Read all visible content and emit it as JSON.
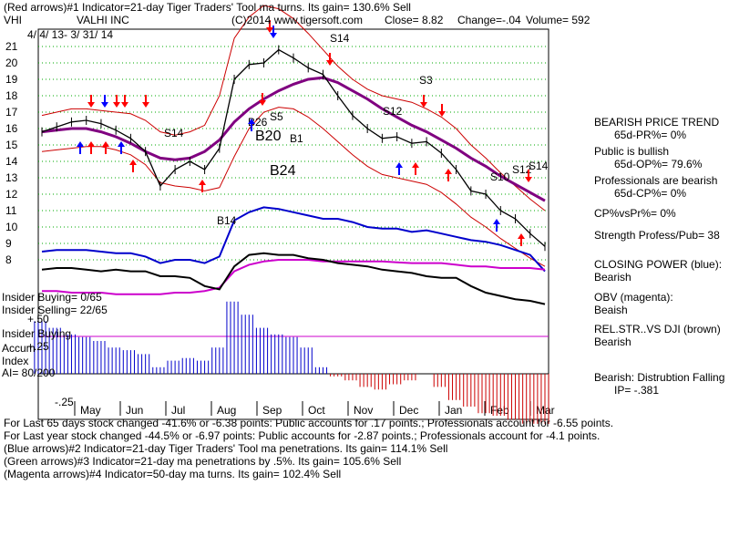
{
  "header": {
    "indicator1": "(Red arrows)#1 Indicator=21-day Tiger Traders' Tool ma turns. Its gain= 130.6% Sell",
    "ticker": "VHI",
    "company": "VALHI INC",
    "copyright": "(C)2014 www.tigersoft.com",
    "close": "Close=  8.82",
    "change": "Change=-.04",
    "volume": "Volume= 592",
    "date_range": "4/ 4/ 13- 3/ 31/ 14"
  },
  "chart_data": {
    "type": "line",
    "title": "VALHI INC",
    "y_ticks": [
      "21",
      "20",
      "19",
      "18",
      "17",
      "16",
      "15",
      "14",
      "13",
      "12",
      "11",
      "10",
      "9",
      "8"
    ],
    "x_labels": [
      "May",
      "Jun",
      "Jul",
      "Aug",
      "Sep",
      "Oct",
      "Nov",
      "Dec",
      "Jan",
      "Feb",
      "Mar"
    ],
    "series": [
      {
        "name": "Close",
        "values": [
          15.8,
          16.1,
          16.4,
          16.5,
          16.3,
          15.9,
          15.4,
          14.6,
          12.5,
          13.5,
          14.0,
          13.5,
          14.8,
          19.0,
          19.9,
          20.0,
          20.8,
          20.3,
          19.7,
          19.3,
          18.0,
          16.8,
          16.0,
          15.4,
          15.5,
          15.1,
          15.2,
          14.5,
          13.5,
          12.2,
          12.0,
          11.0,
          10.5,
          9.6,
          8.82
        ]
      },
      {
        "name": "CLOSING POWER (blue)",
        "values": [
          8.5,
          8.6,
          8.6,
          8.6,
          8.5,
          8.4,
          8.4,
          8.2,
          7.8,
          8.0,
          8.0,
          7.8,
          8.2,
          10.4,
          10.9,
          11.2,
          11.1,
          10.9,
          10.7,
          10.5,
          10.5,
          10.3,
          10.0,
          9.9,
          9.9,
          9.7,
          9.8,
          9.6,
          9.4,
          9.2,
          9.1,
          8.9,
          8.6,
          8.3,
          7.3
        ]
      },
      {
        "name": "OBV (magenta)",
        "values": [
          6.1,
          6.1,
          6.0,
          6.0,
          6.0,
          5.9,
          5.9,
          5.9,
          5.9,
          6.0,
          6.0,
          6.1,
          6.3,
          7.3,
          7.7,
          7.9,
          8.0,
          8.0,
          8.0,
          7.9,
          7.9,
          7.9,
          7.9,
          7.9,
          7.85,
          7.8,
          7.8,
          7.8,
          7.7,
          7.6,
          7.6,
          7.5,
          7.5,
          7.5,
          7.4
        ]
      },
      {
        "name": "REL.STR..VS DJI (brown)",
        "values": [
          7.4,
          7.5,
          7.5,
          7.4,
          7.3,
          7.4,
          7.3,
          7.3,
          7.0,
          7.0,
          6.9,
          6.4,
          6.2,
          7.6,
          8.3,
          8.4,
          8.3,
          8.3,
          8.1,
          8.0,
          7.8,
          7.7,
          7.6,
          7.4,
          7.3,
          7.2,
          7.0,
          6.9,
          6.9,
          6.4,
          6.0,
          5.8,
          5.6,
          5.5,
          5.3
        ]
      },
      {
        "name": "Accum Index",
        "values": [
          0.4,
          0.35,
          0.3,
          0.28,
          0.25,
          0.2,
          0.18,
          0.15,
          0.05,
          0.1,
          0.12,
          0.1,
          0.2,
          0.55,
          0.45,
          0.35,
          0.3,
          0.28,
          0.2,
          0.05,
          -0.02,
          -0.05,
          -0.1,
          -0.12,
          -0.08,
          -0.05,
          0.0,
          -0.1,
          -0.2,
          -0.25,
          -0.3,
          -0.32,
          -0.35,
          -0.38,
          -0.381
        ]
      }
    ],
    "band_upper": [
      16.8,
      17.0,
      17.2,
      17.2,
      17.1,
      17.0,
      16.9,
      16.5,
      15.8,
      15.6,
      15.8,
      16.2,
      18.0,
      21.5,
      22.8,
      23.5,
      23.3,
      22.7,
      21.8,
      20.8,
      19.8,
      19.0,
      18.4,
      18.0,
      17.8,
      17.6,
      17.2,
      16.7,
      16.0,
      15.0,
      14.2,
      13.3,
      12.5,
      11.7,
      11.0
    ],
    "band_lower": [
      14.6,
      14.7,
      14.8,
      14.9,
      14.9,
      14.7,
      14.4,
      13.8,
      12.7,
      12.5,
      12.4,
      12.2,
      12.4,
      14.3,
      16.0,
      17.0,
      17.3,
      17.2,
      16.7,
      16.0,
      15.2,
      14.4,
      13.7,
      13.2,
      13.0,
      12.8,
      12.6,
      12.1,
      11.4,
      10.6,
      10.0,
      9.3,
      8.7,
      8.1,
      7.6
    ],
    "ma50": [
      15.8,
      15.9,
      16.0,
      16.0,
      15.8,
      15.5,
      15.1,
      14.6,
      14.2,
      14.1,
      14.2,
      14.6,
      15.3,
      16.4,
      17.2,
      17.8,
      18.3,
      18.7,
      19.0,
      19.1,
      18.8,
      18.3,
      17.8,
      17.2,
      16.7,
      16.2,
      15.8,
      15.3,
      14.8,
      14.2,
      13.7,
      13.1,
      12.6,
      12.1,
      11.6
    ],
    "signals": [
      "S14",
      "B26",
      "S5",
      "B20",
      "B1",
      "S14",
      "B24",
      "S3",
      "S12",
      "S10",
      "S12",
      "S14",
      "B14"
    ]
  },
  "left_labels": {
    "insider_buying": "Insider Buying= 0/65",
    "insider_selling": "Insider Selling= 22/65",
    "plus50": "+.50",
    "insider_buying2": "Insider Buying",
    "plus25": "+.25",
    "accum": "Accum",
    "index": "Index",
    "ai": "AI= 80/200",
    "minus25": "-.25"
  },
  "right_panel": {
    "bearish_trend": "BEARISH PRICE TREND",
    "pr": "65d-PR%= 0%",
    "public_bullish": "Public is bullish",
    "op": "65d-OP%= 79.6%",
    "prof_bearish": "Professionals are bearish",
    "cp": "65d-CP%= 0%",
    "cpvspr": "CP%vsPr%=  0%",
    "strength": "Strength Profess/Pub= 38",
    "closing_power": "CLOSING POWER (blue):",
    "closing_power_val": "Bearish",
    "obv": "OBV (magenta):",
    "obv_val": "Beaish",
    "relstr": "REL.STR..VS DJI (brown)",
    "relstr_val": "Bearish",
    "distribution": "Bearish:  Distrubtion Falling",
    "ip": "IP= -.381"
  },
  "footer": {
    "line1": "For Last 65 days stock changed -41.6% or -6.38 points:  Public accounts for  .17 points.;  Professionals account for -6.55 points.",
    "line2": "For Last year stock changed -44.5% or -6.97 points:  Public accounts for -2.87 points.;  Professionals account for -4.1 points.",
    "line3": "(Blue arrows)#2 Indicator=21-day Tiger Traders' Tool ma penetrations. Its gain= 114.1% Sell",
    "line4": "(Green arrows)#3 Indicator=21-day ma penetrations by .5%. Its gain= 105.6% Sell",
    "line5": "(Magenta arrows)#4 Indicator=50-day ma turns. Its gain= 102.4% Sell"
  },
  "colors": {
    "price": "#000000",
    "band": "#cc0000",
    "ma50": "#800080",
    "closing_power": "#0000cc",
    "obv": "#cc00cc",
    "relstr": "#000000",
    "accum_pos": "#0000cc",
    "accum_neg": "#cc0000",
    "grid": "#00aa00",
    "red_arrow": "#ff0000",
    "blue_arrow": "#0000ff"
  }
}
